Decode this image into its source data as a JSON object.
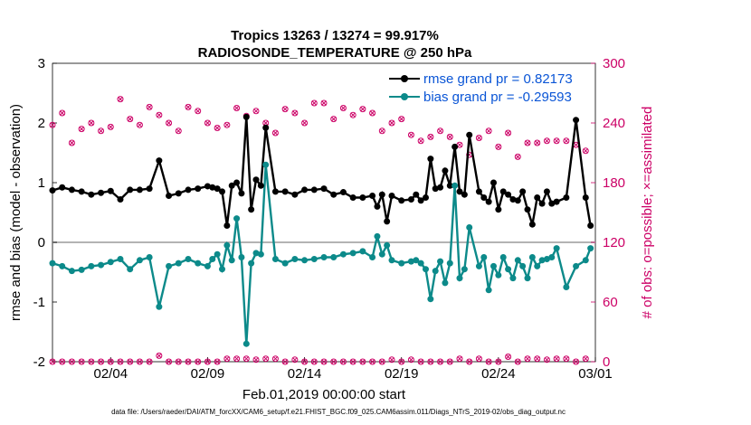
{
  "chart_data": {
    "type": "line",
    "title_line1": "Tropics 13263 / 13274 = 99.917%",
    "title_line2": "RADIOSONDE_TEMPERATURE @ 250 hPa",
    "xlabel": "Feb.01,2019 00:00:00 start",
    "ylabel_left": "rmse and bias (model - observation)",
    "ylabel_right": "# of obs: o=possible; ×=assimilated",
    "ylim_left": [
      -2,
      3
    ],
    "ylim_right": [
      0,
      300
    ],
    "xlim": [
      1,
      57
    ],
    "left_ticks": [
      "-2",
      "-1",
      "0",
      "1",
      "2",
      "3"
    ],
    "right_ticks": [
      "0",
      "60",
      "120",
      "180",
      "240",
      "300"
    ],
    "x_ticks": [
      {
        "pos": 7,
        "label": "02/04"
      },
      {
        "pos": 17,
        "label": "02/09"
      },
      {
        "pos": 27,
        "label": "02/14"
      },
      {
        "pos": 37,
        "label": "02/19"
      },
      {
        "pos": 47,
        "label": "02/24"
      },
      {
        "pos": 57,
        "label": "03/01"
      }
    ],
    "footnote": "data file: /Users/raeder/DAI/ATM_forcXX/CAM6_setup/f.e21.FHIST_BGC.f09_025.CAM6assim.011/Diags_NTrS_2019-02/obs_diag_output.nc",
    "series": [
      {
        "name": "rmse grand pr = 0.82173",
        "color": "#000000",
        "axis": "left",
        "x": [
          1,
          2,
          3,
          4,
          5,
          6,
          7,
          8,
          9,
          10,
          11,
          12,
          13,
          14,
          15,
          16,
          17,
          17.5,
          18,
          18.5,
          19,
          19.5,
          20,
          20.5,
          21,
          21.5,
          22,
          22.5,
          23,
          24,
          25,
          26,
          27,
          28,
          29,
          30,
          31,
          32,
          33,
          34,
          34.5,
          35,
          35.5,
          36,
          37,
          38,
          38.5,
          39,
          39.5,
          40,
          40.5,
          41,
          41.5,
          42,
          42.5,
          43,
          43.5,
          44,
          45,
          45.5,
          46,
          46.5,
          47,
          47.5,
          48,
          48.5,
          49,
          49.5,
          50,
          50.5,
          51,
          51.5,
          52,
          52.5,
          53,
          54,
          55,
          56,
          56.5
        ],
        "values": [
          0.87,
          0.92,
          0.88,
          0.85,
          0.8,
          0.83,
          0.86,
          0.72,
          0.88,
          0.88,
          0.9,
          1.37,
          0.78,
          0.82,
          0.88,
          0.9,
          0.94,
          0.92,
          0.9,
          0.85,
          0.28,
          0.95,
          1.0,
          0.82,
          2.1,
          0.55,
          1.05,
          0.95,
          1.92,
          0.85,
          0.85,
          0.8,
          0.88,
          0.88,
          0.9,
          0.8,
          0.84,
          0.75,
          0.75,
          0.78,
          0.6,
          0.8,
          0.35,
          0.78,
          0.7,
          0.72,
          0.8,
          0.7,
          0.75,
          1.4,
          0.9,
          0.92,
          1.2,
          0.95,
          1.6,
          0.85,
          0.8,
          1.8,
          0.85,
          0.75,
          0.68,
          1.0,
          0.55,
          0.85,
          0.8,
          0.72,
          0.7,
          0.85,
          0.55,
          0.3,
          0.75,
          0.65,
          0.85,
          0.65,
          0.68,
          0.75,
          2.05,
          0.75,
          0.28
        ],
        "label_text": "rmse grand pr = 0.82173"
      },
      {
        "name": "bias grand pr = -0.29593",
        "color": "#0c8a8a",
        "axis": "left",
        "x": [
          1,
          2,
          3,
          4,
          5,
          6,
          7,
          8,
          9,
          10,
          11,
          12,
          13,
          14,
          15,
          16,
          17,
          17.5,
          18,
          18.5,
          19,
          19.5,
          20,
          20.5,
          21,
          21.5,
          22,
          22.5,
          23,
          24,
          25,
          26,
          27,
          28,
          29,
          30,
          31,
          32,
          33,
          34,
          34.5,
          35,
          35.5,
          36,
          37,
          38,
          38.5,
          39,
          39.5,
          40,
          40.5,
          41,
          41.5,
          42,
          42.5,
          43,
          43.5,
          44,
          45,
          45.5,
          46,
          46.5,
          47,
          47.5,
          48,
          48.5,
          49,
          49.5,
          50,
          50.5,
          51,
          51.5,
          52,
          52.5,
          53,
          54,
          55,
          56,
          56.5
        ],
        "values": [
          -0.35,
          -0.4,
          -0.48,
          -0.46,
          -0.4,
          -0.38,
          -0.33,
          -0.28,
          -0.45,
          -0.3,
          -0.25,
          -1.08,
          -0.4,
          -0.35,
          -0.28,
          -0.35,
          -0.4,
          -0.28,
          -0.2,
          -0.45,
          -0.05,
          -0.3,
          0.4,
          -0.25,
          -1.7,
          -0.35,
          -0.18,
          -0.2,
          1.3,
          -0.28,
          -0.35,
          -0.28,
          -0.3,
          -0.28,
          -0.25,
          -0.25,
          -0.2,
          -0.18,
          -0.15,
          -0.25,
          0.1,
          -0.2,
          -0.05,
          -0.3,
          -0.35,
          -0.32,
          -0.3,
          -0.35,
          -0.45,
          -0.95,
          -0.48,
          -0.32,
          -0.68,
          -0.35,
          0.95,
          -0.6,
          -0.45,
          0.25,
          -0.4,
          -0.25,
          -0.8,
          -0.4,
          -0.55,
          -0.25,
          -0.45,
          -0.6,
          -0.3,
          -0.4,
          -0.6,
          -0.25,
          -0.4,
          -0.3,
          -0.28,
          -0.25,
          -0.1,
          -0.75,
          -0.4,
          -0.3,
          -0.1
        ],
        "label_text": "bias grand pr = -0.29593"
      }
    ],
    "obs_counts": {
      "color": "#cc0066",
      "axis": "right",
      "x_top": [
        1,
        2,
        3,
        4,
        5,
        6,
        7,
        8,
        9,
        10,
        11,
        12,
        13,
        14,
        15,
        16,
        17,
        18,
        19,
        20,
        21,
        22,
        23,
        24,
        25,
        26,
        27,
        28,
        29,
        30,
        31,
        32,
        33,
        34,
        35,
        36,
        37,
        38,
        39,
        40,
        41,
        42,
        43,
        44,
        45,
        46,
        47,
        48,
        49,
        50,
        51,
        52,
        53,
        54,
        55,
        56
      ],
      "possible": [
        238,
        250,
        220,
        234,
        240,
        232,
        236,
        264,
        244,
        238,
        256,
        248,
        240,
        232,
        256,
        252,
        240,
        235,
        238,
        255,
        247,
        252,
        240,
        230,
        254,
        250,
        240,
        260,
        260,
        244,
        255,
        248,
        254,
        250,
        232,
        240,
        244,
        228,
        222,
        226,
        232,
        226,
        218,
        208,
        225,
        232,
        216,
        230,
        206,
        220,
        220,
        222,
        222,
        222,
        218,
        212
      ],
      "x_bottom": [
        1,
        2,
        3,
        4,
        5,
        6,
        7,
        8,
        9,
        10,
        11,
        12,
        13,
        14,
        15,
        16,
        17,
        18,
        19,
        20,
        21,
        22,
        23,
        24,
        25,
        26,
        27,
        28,
        29,
        30,
        31,
        32,
        33,
        34,
        35,
        36,
        37,
        38,
        39,
        40,
        41,
        42,
        43,
        44,
        45,
        46,
        47,
        48,
        49,
        50,
        51,
        52,
        53,
        54,
        55,
        56
      ],
      "zero_count": [
        0,
        0,
        0,
        0,
        0,
        0,
        0,
        0,
        0,
        0,
        0,
        6,
        0,
        0,
        0,
        0,
        0,
        0,
        3,
        3,
        3,
        2,
        3,
        3,
        0,
        2,
        0,
        0,
        0,
        0,
        0,
        0,
        0,
        0,
        0,
        2,
        0,
        2,
        0,
        0,
        0,
        0,
        3,
        0,
        3,
        0,
        0,
        5,
        0,
        3,
        3,
        2,
        3,
        3,
        0,
        3
      ]
    }
  }
}
